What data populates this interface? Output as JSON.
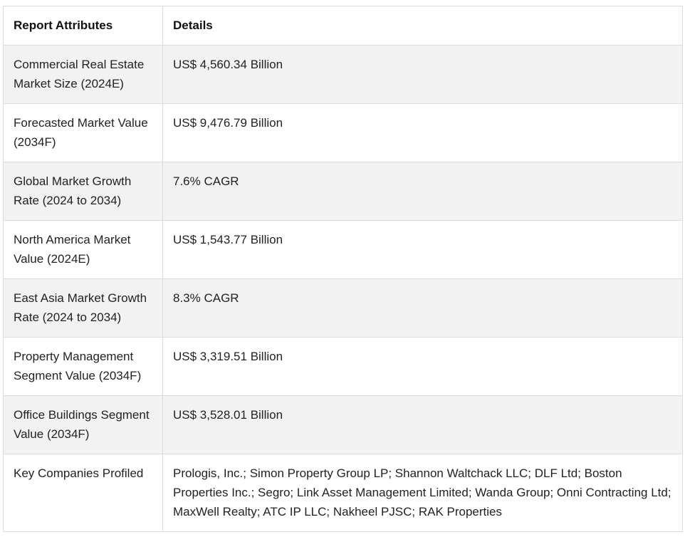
{
  "table": {
    "headers": [
      "Report Attributes",
      "Details"
    ],
    "rows": [
      {
        "attribute": "Commercial Real Estate Market Size (2024E)",
        "detail": "US$ 4,560.34 Billion"
      },
      {
        "attribute": "Forecasted Market Value (2034F)",
        "detail": "US$ 9,476.79 Billion"
      },
      {
        "attribute": "Global Market Growth Rate (2024 to 2034)",
        "detail": "7.6% CAGR"
      },
      {
        "attribute": "North America Market Value (2024E)",
        "detail": "US$ 1,543.77 Billion"
      },
      {
        "attribute": "East Asia Market Growth Rate (2024 to 2034)",
        "detail": "8.3% CAGR"
      },
      {
        "attribute": "Property Management Segment Value (2034F)",
        "detail": "US$ 3,319.51 Billion"
      },
      {
        "attribute": "Office Buildings Segment Value (2034F)",
        "detail": "US$ 3,528.01 Billion"
      },
      {
        "attribute": "Key Companies Profiled",
        "detail": "Prologis, Inc.; Simon Property Group LP; Shannon Waltchack LLC; DLF Ltd; Boston Properties Inc.; Segro; Link Asset Management Limited; Wanda Group; Onni Contracting Ltd; MaxWell Realty; ATC IP LLC; Nakheel PJSC; RAK Properties"
      }
    ]
  }
}
